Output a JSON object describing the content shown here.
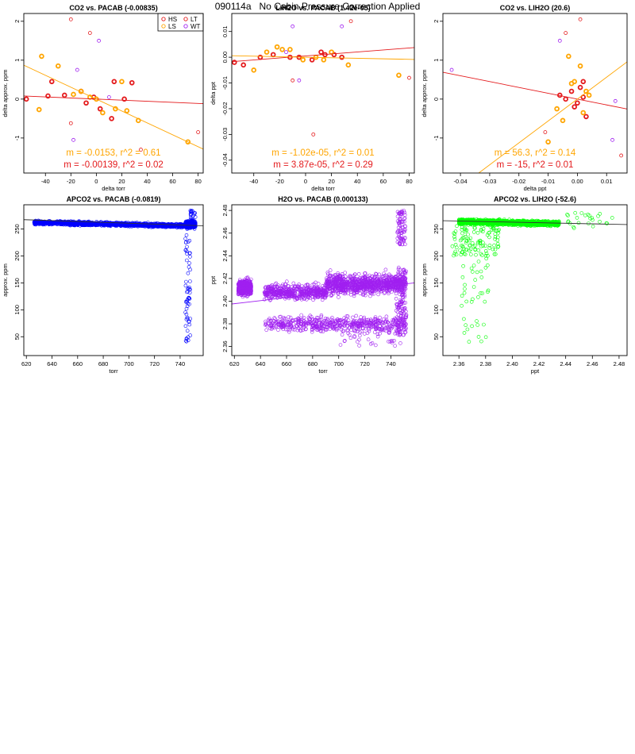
{
  "page": {
    "title": "090114a   No Cabin Pressure Correction Applied"
  },
  "colors": {
    "HS": "#e41a1c",
    "LS": "#ffa500",
    "LT": "#e41a1c",
    "WT": "#a020f0",
    "blue": "#0000ff",
    "purple": "#a020f0",
    "green": "#00ff00",
    "fitRed": "#e41a1c",
    "fitOrange": "#ffa500",
    "fitBlack": "#333333"
  },
  "chart_data": [
    {
      "type": "scatter",
      "title": "CO2 vs. PACAB (-0.00835)",
      "xlabel": "delta torr",
      "ylabel": "delta approx. ppm",
      "xlim": [
        -57,
        84
      ],
      "ylim": [
        -1.9,
        2.2
      ],
      "xticks": [
        -40,
        -20,
        0,
        20,
        40,
        60,
        80
      ],
      "yticks": [
        -1,
        0,
        1,
        2
      ],
      "legend": {
        "position": "top-right",
        "entries": [
          {
            "label": "HS",
            "color": "HS"
          },
          {
            "label": "LT",
            "color": "LT"
          },
          {
            "label": "LS",
            "color": "LS"
          },
          {
            "label": "WT",
            "color": "WT"
          }
        ]
      },
      "series": [
        {
          "color": "HS",
          "points": [
            [
              -55,
              0.0
            ],
            [
              -38,
              0.08
            ],
            [
              -35,
              0.45
            ],
            [
              -25,
              0.1
            ],
            [
              -12,
              0.2
            ],
            [
              -8,
              -0.1
            ],
            [
              -2,
              0.05
            ],
            [
              3,
              -0.25
            ],
            [
              12,
              -0.5
            ],
            [
              14,
              0.45
            ],
            [
              22,
              0.0
            ],
            [
              28,
              0.42
            ]
          ]
        },
        {
          "color": "LS",
          "points": [
            [
              -43,
              1.1
            ],
            [
              -45,
              -0.27
            ],
            [
              -30,
              0.85
            ],
            [
              -18,
              0.12
            ],
            [
              -12,
              0.2
            ],
            [
              -5,
              0.05
            ],
            [
              0,
              0.0
            ],
            [
              5,
              -0.35
            ],
            [
              15,
              -0.25
            ],
            [
              20,
              0.45
            ],
            [
              24,
              -0.3
            ],
            [
              33,
              -0.55
            ],
            [
              72,
              -1.1
            ]
          ]
        },
        {
          "color": "LT",
          "points": [
            [
              -20,
              -0.62
            ],
            [
              -5,
              1.7
            ],
            [
              -20,
              2.05
            ],
            [
              35,
              -1.3
            ],
            [
              80,
              -0.85
            ]
          ]
        },
        {
          "color": "WT",
          "points": [
            [
              -15,
              0.75
            ],
            [
              -18,
              -1.05
            ],
            [
              2,
              1.5
            ],
            [
              10,
              0.05
            ]
          ]
        }
      ],
      "fits": [
        {
          "color": "fitRed",
          "slope": -0.00139,
          "intercept": 0.0,
          "label": "m = -0.00139, r^2 = 0.02"
        },
        {
          "color": "fitOrange",
          "slope": -0.0153,
          "intercept": 0.0,
          "label": "m = -0.0153, r^2 = 0.61"
        }
      ]
    },
    {
      "type": "scatter",
      "title": "LIH2O vs. PACAB (1.42e-05)",
      "xlabel": "delta torr",
      "ylabel": "delta ppt",
      "xlim": [
        -57,
        84
      ],
      "ylim": [
        -0.045,
        0.017
      ],
      "xticks": [
        -40,
        -20,
        0,
        20,
        40,
        60,
        80
      ],
      "yticks": [
        -0.04,
        -0.03,
        -0.02,
        -0.01,
        0.0,
        0.01
      ],
      "series": [
        {
          "color": "HS",
          "points": [
            [
              -55,
              -0.002
            ],
            [
              -48,
              -0.003
            ],
            [
              -35,
              0.0
            ],
            [
              -25,
              0.001
            ],
            [
              -12,
              0.0
            ],
            [
              -5,
              0.0
            ],
            [
              5,
              -0.001
            ],
            [
              12,
              0.002
            ],
            [
              15,
              0.001
            ],
            [
              22,
              0.001
            ],
            [
              28,
              0.0
            ]
          ]
        },
        {
          "color": "LS",
          "points": [
            [
              -40,
              -0.005
            ],
            [
              -30,
              0.002
            ],
            [
              -22,
              0.004
            ],
            [
              -18,
              0.003
            ],
            [
              -12,
              0.003
            ],
            [
              -2,
              -0.001
            ],
            [
              8,
              0.0
            ],
            [
              14,
              -0.001
            ],
            [
              20,
              0.002
            ],
            [
              33,
              -0.003
            ],
            [
              72,
              -0.007
            ]
          ]
        },
        {
          "color": "LT",
          "points": [
            [
              6,
              -0.03
            ],
            [
              35,
              0.014
            ],
            [
              80,
              -0.008
            ],
            [
              -10,
              -0.009
            ]
          ]
        },
        {
          "color": "WT",
          "points": [
            [
              -10,
              0.012
            ],
            [
              28,
              0.012
            ],
            [
              -5,
              -0.009
            ],
            [
              -15,
              0.002
            ]
          ]
        }
      ],
      "fits": [
        {
          "color": "fitRed",
          "slope": 3.87e-05,
          "intercept": 0.0005,
          "label": "m = 3.87e-05, r^2 = 0.29"
        },
        {
          "color": "fitOrange",
          "slope": -1.02e-05,
          "intercept": 0.0,
          "label": "m = -1.02e-05, r^2 = 0.01"
        }
      ]
    },
    {
      "type": "scatter",
      "title": "CO2 vs. LIH2O (20.6)",
      "xlabel": "delta ppt",
      "ylabel": "delta approx. ppm",
      "xlim": [
        -0.046,
        0.017
      ],
      "ylim": [
        -1.9,
        2.2
      ],
      "xticks": [
        -0.04,
        -0.03,
        -0.02,
        -0.01,
        0.0,
        0.01
      ],
      "yticks": [
        -1,
        0,
        1,
        2
      ],
      "series": [
        {
          "color": "HS",
          "points": [
            [
              -0.006,
              0.1
            ],
            [
              -0.004,
              0.0
            ],
            [
              -0.002,
              0.2
            ],
            [
              0.0,
              -0.1
            ],
            [
              0.001,
              0.3
            ],
            [
              0.002,
              0.45
            ],
            [
              0.003,
              -0.45
            ],
            [
              0.002,
              0.05
            ],
            [
              -0.001,
              -0.2
            ]
          ]
        },
        {
          "color": "LS",
          "points": [
            [
              -0.007,
              -0.25
            ],
            [
              -0.005,
              -0.55
            ],
            [
              -0.003,
              1.1
            ],
            [
              -0.002,
              0.4
            ],
            [
              0.001,
              0.85
            ],
            [
              0.003,
              0.2
            ],
            [
              0.004,
              0.1
            ],
            [
              0.002,
              -0.35
            ],
            [
              -0.001,
              0.45
            ],
            [
              -0.01,
              -1.1
            ]
          ]
        },
        {
          "color": "LT",
          "points": [
            [
              -0.004,
              1.7
            ],
            [
              0.001,
              2.05
            ],
            [
              0.015,
              -1.45
            ],
            [
              -0.011,
              -0.85
            ]
          ]
        },
        {
          "color": "WT",
          "points": [
            [
              -0.043,
              0.75
            ],
            [
              -0.006,
              1.5
            ],
            [
              0.013,
              -0.05
            ],
            [
              0.012,
              -1.05
            ]
          ]
        }
      ],
      "fits": [
        {
          "color": "fitRed",
          "slope": -15,
          "intercept": 0.0,
          "label": "m = -15, r^2 = 0.01"
        },
        {
          "color": "fitOrange",
          "slope": 56.3,
          "intercept": 0.0,
          "label": "m = 56.3, r^2 = 0.14"
        }
      ]
    },
    {
      "type": "scatter",
      "title": "APCO2 vs. PACAB (-0.0819)",
      "xlabel": "torr",
      "ylabel": "approx. ppm",
      "xlim": [
        618,
        758
      ],
      "ylim": [
        15,
        295
      ],
      "xticks": [
        620,
        640,
        660,
        680,
        700,
        720,
        740
      ],
      "yticks": [
        50,
        100,
        150,
        200,
        250
      ],
      "color": "blue",
      "fits": [
        {
          "color": "fitBlack",
          "slope": -0.0819,
          "intercept": 318,
          "label": ""
        }
      ]
    },
    {
      "type": "scatter",
      "title": "H2O vs. PACAB (0.000133)",
      "xlabel": "torr",
      "ylabel": "ppt",
      "xlim": [
        618,
        758
      ],
      "ylim": [
        2.352,
        2.485
      ],
      "xticks": [
        620,
        640,
        660,
        680,
        700,
        720,
        740
      ],
      "yticks": [
        2.36,
        2.38,
        2.4,
        2.42,
        2.44,
        2.46,
        2.48
      ],
      "color": "purple",
      "fits": [
        {
          "color": "purple",
          "slope": 0.000133,
          "intercept": 2.3153,
          "label": ""
        }
      ]
    },
    {
      "type": "scatter",
      "title": "APCO2 vs. LIH2O (-52.6)",
      "xlabel": "ppt",
      "ylabel": "approx. ppm",
      "xlim": [
        2.348,
        2.486
      ],
      "ylim": [
        15,
        295
      ],
      "xticks": [
        2.36,
        2.38,
        2.4,
        2.42,
        2.44,
        2.46,
        2.48
      ],
      "yticks": [
        50,
        100,
        150,
        200,
        250
      ],
      "color": "green",
      "fits": [
        {
          "color": "fitBlack",
          "slope": -52.6,
          "intercept": 389,
          "label": ""
        }
      ]
    }
  ]
}
